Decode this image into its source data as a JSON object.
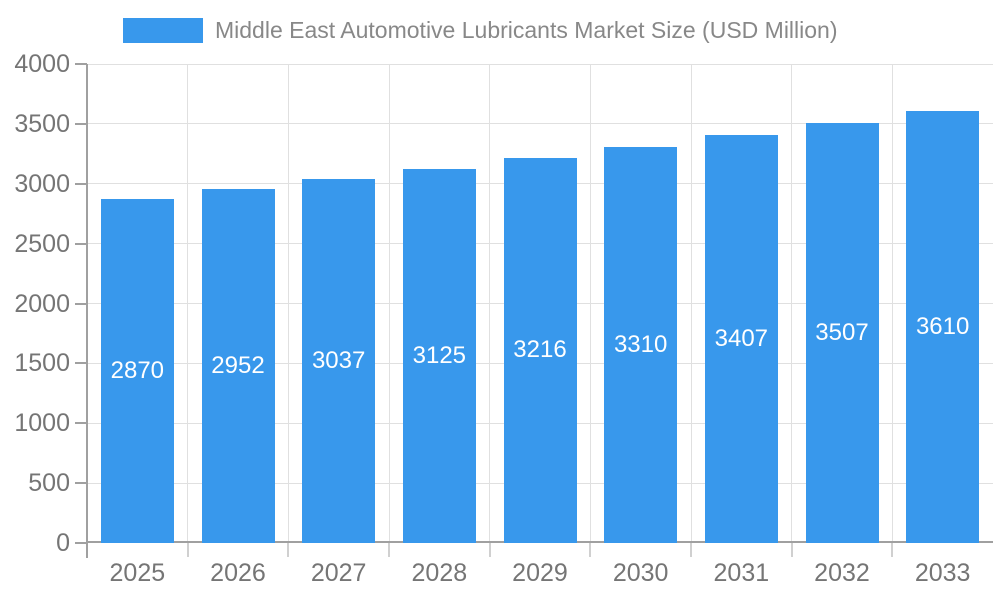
{
  "legend": {
    "label": "Middle East Automotive Lubricants Market Size (USD Million)"
  },
  "colors": {
    "bar": "#3898EC",
    "grid": "#E0E0E0",
    "axis": "#A0A0A0",
    "minor_tick": "#D0D0D0",
    "tick_label": "#757575",
    "legend_text": "#888888",
    "bar_label": "#FFFFFF",
    "background": "#FFFFFF"
  },
  "chart_data": {
    "type": "bar",
    "title": "Middle East Automotive Lubricants Market Size (USD Million)",
    "categories": [
      "2025",
      "2026",
      "2027",
      "2028",
      "2029",
      "2030",
      "2031",
      "2032",
      "2033"
    ],
    "values": [
      2870,
      2952,
      3037,
      3125,
      3216,
      3310,
      3407,
      3507,
      3610
    ],
    "xlabel": "",
    "ylabel": "",
    "ylim": [
      0,
      4000
    ],
    "ytick_interval": 500,
    "yticks": [
      0,
      500,
      1000,
      1500,
      2000,
      2500,
      3000,
      3500,
      4000
    ],
    "grid": true,
    "legend_position": "top",
    "value_labels": "inside-center-white"
  }
}
